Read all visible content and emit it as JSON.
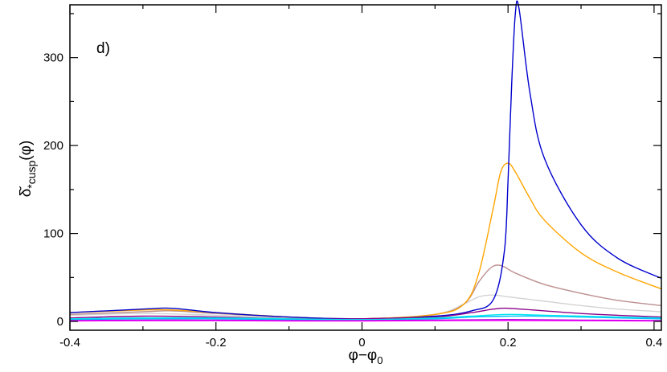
{
  "chart_data": {
    "type": "line",
    "panel_label": "d)",
    "xlabel": {
      "main": "φ−φ",
      "sub": "0"
    },
    "ylabel": {
      "main": "δ̆",
      "sub": "*cusp",
      "tail": "(φ)"
    },
    "xlim": [
      -0.4,
      0.41
    ],
    "ylim": [
      -10,
      360
    ],
    "xticks": [
      {
        "v": -0.4,
        "label": "-0.4"
      },
      {
        "v": -0.2,
        "label": "-0.2"
      },
      {
        "v": 0,
        "label": "0"
      },
      {
        "v": 0.2,
        "label": "0.2"
      },
      {
        "v": 0.4,
        "label": "0.4"
      }
    ],
    "yticks": [
      {
        "v": 0,
        "label": "0"
      },
      {
        "v": 100,
        "label": "100"
      },
      {
        "v": 200,
        "label": "200"
      },
      {
        "v": 300,
        "label": "300"
      }
    ],
    "series": [
      {
        "color": "#d3d3d3",
        "x": [
          -0.4,
          -0.3,
          -0.2,
          -0.1,
          0,
          0.1,
          0.14,
          0.16,
          0.18,
          0.2,
          0.25,
          0.3,
          0.35,
          0.41
        ],
        "y": [
          7,
          9,
          7,
          4,
          3,
          8,
          20,
          28,
          30,
          28,
          23,
          18,
          14,
          11
        ]
      },
      {
        "color": "#bc8f8f",
        "x": [
          -0.4,
          -0.3,
          -0.26,
          -0.2,
          -0.1,
          0,
          0.1,
          0.14,
          0.16,
          0.175,
          0.185,
          0.195,
          0.21,
          0.25,
          0.3,
          0.35,
          0.41
        ],
        "y": [
          8,
          11,
          12,
          9,
          5,
          3,
          8,
          20,
          45,
          60,
          64,
          62,
          55,
          42,
          32,
          24,
          18
        ]
      },
      {
        "color": "#ffa500",
        "x": [
          -0.4,
          -0.3,
          -0.26,
          -0.2,
          -0.1,
          0,
          0.1,
          0.14,
          0.16,
          0.18,
          0.19,
          0.2,
          0.21,
          0.23,
          0.25,
          0.3,
          0.35,
          0.41
        ],
        "y": [
          10,
          13,
          13,
          10,
          5,
          3,
          8,
          20,
          55,
          130,
          170,
          180,
          170,
          140,
          115,
          78,
          56,
          37
        ]
      },
      {
        "color": "#0000cd",
        "x": [
          -0.4,
          -0.3,
          -0.26,
          -0.2,
          -0.1,
          0,
          0.1,
          0.15,
          0.18,
          0.195,
          0.2,
          0.205,
          0.21,
          0.215,
          0.23,
          0.25,
          0.3,
          0.35,
          0.41
        ],
        "y": [
          10,
          14,
          15,
          10,
          5,
          3,
          6,
          12,
          25,
          80,
          160,
          270,
          350,
          356,
          260,
          185,
          110,
          72,
          49
        ]
      },
      {
        "color": "#8b008b",
        "x": [
          -0.4,
          -0.3,
          -0.2,
          -0.1,
          0,
          0.1,
          0.15,
          0.18,
          0.2,
          0.25,
          0.3,
          0.35,
          0.41
        ],
        "y": [
          4,
          6,
          5,
          3,
          3,
          5,
          10,
          14,
          15,
          12,
          9,
          7,
          5
        ]
      },
      {
        "color": "#00bfff",
        "x": [
          -0.4,
          -0.3,
          -0.2,
          -0.1,
          0,
          0.1,
          0.15,
          0.2,
          0.25,
          0.3,
          0.35,
          0.41
        ],
        "y": [
          2,
          3,
          3,
          2,
          2,
          3,
          5,
          6,
          6,
          5,
          4,
          3
        ]
      },
      {
        "color": "#00e5ee",
        "x": [
          -0.4,
          -0.3,
          -0.2,
          -0.1,
          0,
          0.1,
          0.15,
          0.2,
          0.25,
          0.3,
          0.35,
          0.41
        ],
        "y": [
          3,
          4,
          4,
          3,
          2,
          4,
          6,
          8,
          7,
          6,
          5,
          4
        ]
      },
      {
        "color": "#9400d3",
        "x": [
          -0.4,
          -0.3,
          -0.2,
          -0.1,
          0,
          0.1,
          0.2,
          0.3,
          0.41
        ],
        "y": [
          1,
          1.5,
          1.5,
          1,
          1,
          1.5,
          2,
          1.5,
          1
        ]
      },
      {
        "color": "#ff00ff",
        "x": [
          -0.4,
          -0.3,
          -0.2,
          -0.1,
          0,
          0.1,
          0.2,
          0.3,
          0.41
        ],
        "y": [
          0.5,
          0.8,
          0.8,
          0.5,
          0.5,
          0.8,
          1,
          0.8,
          0.5
        ]
      }
    ]
  }
}
